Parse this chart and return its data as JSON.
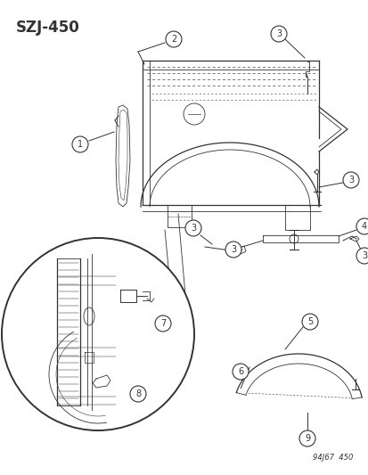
{
  "title": "SZJ-450",
  "footer": "94J67  450",
  "bg_color": "#ffffff",
  "lc": "#333333",
  "fig_w": 4.14,
  "fig_h": 5.33,
  "dpi": 100
}
